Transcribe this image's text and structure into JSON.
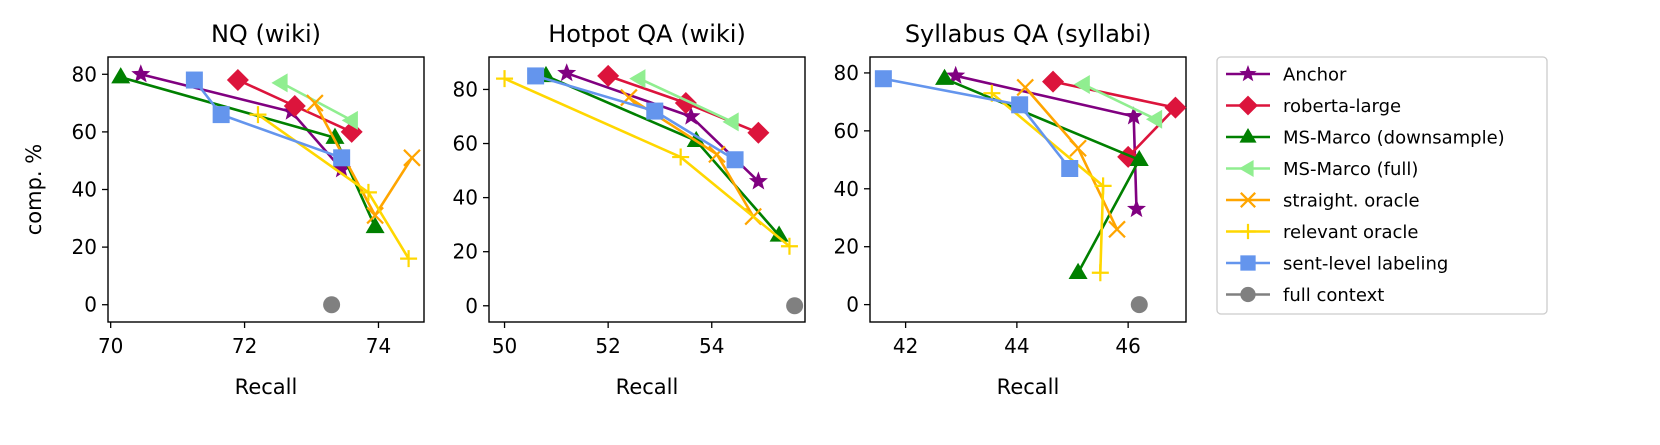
{
  "chart_data": [
    {
      "type": "line",
      "title": "NQ (wiki)",
      "xlabel": "Recall",
      "ylabel": "comp. %",
      "xlim": [
        69.96,
        74.68
      ],
      "ylim": [
        -6,
        86
      ],
      "xticks": [
        70,
        72,
        74
      ],
      "yticks": [
        0,
        20,
        40,
        60,
        80
      ],
      "series": [
        {
          "name": "Anchor",
          "x": [
            70.45,
            72.7,
            73.45
          ],
          "y": [
            80,
            67,
            47
          ]
        },
        {
          "name": "roberta-large",
          "x": [
            71.9,
            72.75,
            73.6
          ],
          "y": [
            78,
            69,
            60
          ]
        },
        {
          "name": "MS-Marco (downsample)",
          "x": [
            70.15,
            73.35,
            73.95
          ],
          "y": [
            79,
            58,
            27
          ]
        },
        {
          "name": "MS-Marco (full)",
          "x": [
            72.55,
            73.6
          ],
          "y": [
            77,
            64
          ]
        },
        {
          "name": "straight. oracle",
          "x": [
            73.05,
            73.95,
            74.5
          ],
          "y": [
            70,
            31,
            51
          ]
        },
        {
          "name": "relevant oracle",
          "x": [
            72.2,
            73.85,
            74.45
          ],
          "y": [
            66,
            39,
            16
          ]
        },
        {
          "name": "sent-level labeling",
          "x": [
            71.25,
            71.65,
            73.45
          ],
          "y": [
            78,
            66,
            51
          ]
        },
        {
          "name": "full context",
          "x": [
            73.3
          ],
          "y": [
            0
          ]
        }
      ]
    },
    {
      "type": "line",
      "title": "Hotpot QA (wiki)",
      "xlabel": "Recall",
      "ylabel": "",
      "xlim": [
        49.7,
        55.8
      ],
      "ylim": [
        -6,
        92
      ],
      "xticks": [
        50,
        52,
        54
      ],
      "yticks": [
        0,
        20,
        40,
        60,
        80
      ],
      "series": [
        {
          "name": "Anchor",
          "x": [
            51.2,
            53.6,
            54.9
          ],
          "y": [
            86,
            70,
            46
          ]
        },
        {
          "name": "roberta-large",
          "x": [
            52.0,
            53.5,
            54.9
          ],
          "y": [
            85,
            75,
            64
          ]
        },
        {
          "name": "MS-Marco (downsample)",
          "x": [
            50.8,
            53.7,
            55.3
          ],
          "y": [
            85,
            61,
            26
          ]
        },
        {
          "name": "MS-Marco (full)",
          "x": [
            52.6,
            54.4
          ],
          "y": [
            84,
            68
          ]
        },
        {
          "name": "straight. oracle",
          "x": [
            52.4,
            54.1,
            54.8
          ],
          "y": [
            77,
            56,
            33
          ]
        },
        {
          "name": "relevant oracle",
          "x": [
            50.0,
            53.4,
            55.5
          ],
          "y": [
            84,
            55,
            22
          ]
        },
        {
          "name": "sent-level labeling",
          "x": [
            50.6,
            52.9,
            54.45
          ],
          "y": [
            85,
            72,
            54
          ]
        },
        {
          "name": "full context",
          "x": [
            55.6
          ],
          "y": [
            0
          ]
        }
      ]
    },
    {
      "type": "line",
      "title": "Syllabus QA (syllabi)",
      "xlabel": "Recall",
      "ylabel": "",
      "xlim": [
        41.36,
        47.04
      ],
      "ylim": [
        -6,
        85.5
      ],
      "xticks": [
        42,
        44,
        46
      ],
      "yticks": [
        0,
        20,
        40,
        60,
        80
      ],
      "series": [
        {
          "name": "Anchor",
          "x": [
            42.9,
            46.1,
            46.15
          ],
          "y": [
            79,
            65,
            33
          ]
        },
        {
          "name": "roberta-large",
          "x": [
            44.65,
            46.85,
            46.0
          ],
          "y": [
            77,
            68,
            51
          ]
        },
        {
          "name": "MS-Marco (downsample)",
          "x": [
            42.7,
            46.2,
            45.1
          ],
          "y": [
            78,
            50,
            11
          ]
        },
        {
          "name": "MS-Marco (full)",
          "x": [
            45.2,
            46.5
          ],
          "y": [
            76,
            64
          ]
        },
        {
          "name": "straight. oracle",
          "x": [
            44.15,
            45.1,
            45.8
          ],
          "y": [
            75,
            54,
            26
          ]
        },
        {
          "name": "relevant oracle",
          "x": [
            43.55,
            45.55,
            45.5
          ],
          "y": [
            73,
            41,
            11
          ]
        },
        {
          "name": "sent-level labeling",
          "x": [
            41.6,
            44.05,
            44.95
          ],
          "y": [
            78,
            69,
            47
          ]
        },
        {
          "name": "full context",
          "x": [
            46.2
          ],
          "y": [
            0
          ]
        }
      ]
    }
  ],
  "legend": [
    {
      "name": "Anchor",
      "color": "#800080",
      "marker": "star"
    },
    {
      "name": "roberta-large",
      "color": "#dc143c",
      "marker": "diamond"
    },
    {
      "name": "MS-Marco (downsample)",
      "color": "#008000",
      "marker": "triangle-up"
    },
    {
      "name": "MS-Marco (full)",
      "color": "#90ee90",
      "marker": "triangle-left"
    },
    {
      "name": "straight. oracle",
      "color": "#ffa500",
      "marker": "x"
    },
    {
      "name": "relevant oracle",
      "color": "#ffd700",
      "marker": "plus"
    },
    {
      "name": "sent-level labeling",
      "color": "#6495ed",
      "marker": "square"
    },
    {
      "name": "full context",
      "color": "#808080",
      "marker": "circle"
    }
  ]
}
